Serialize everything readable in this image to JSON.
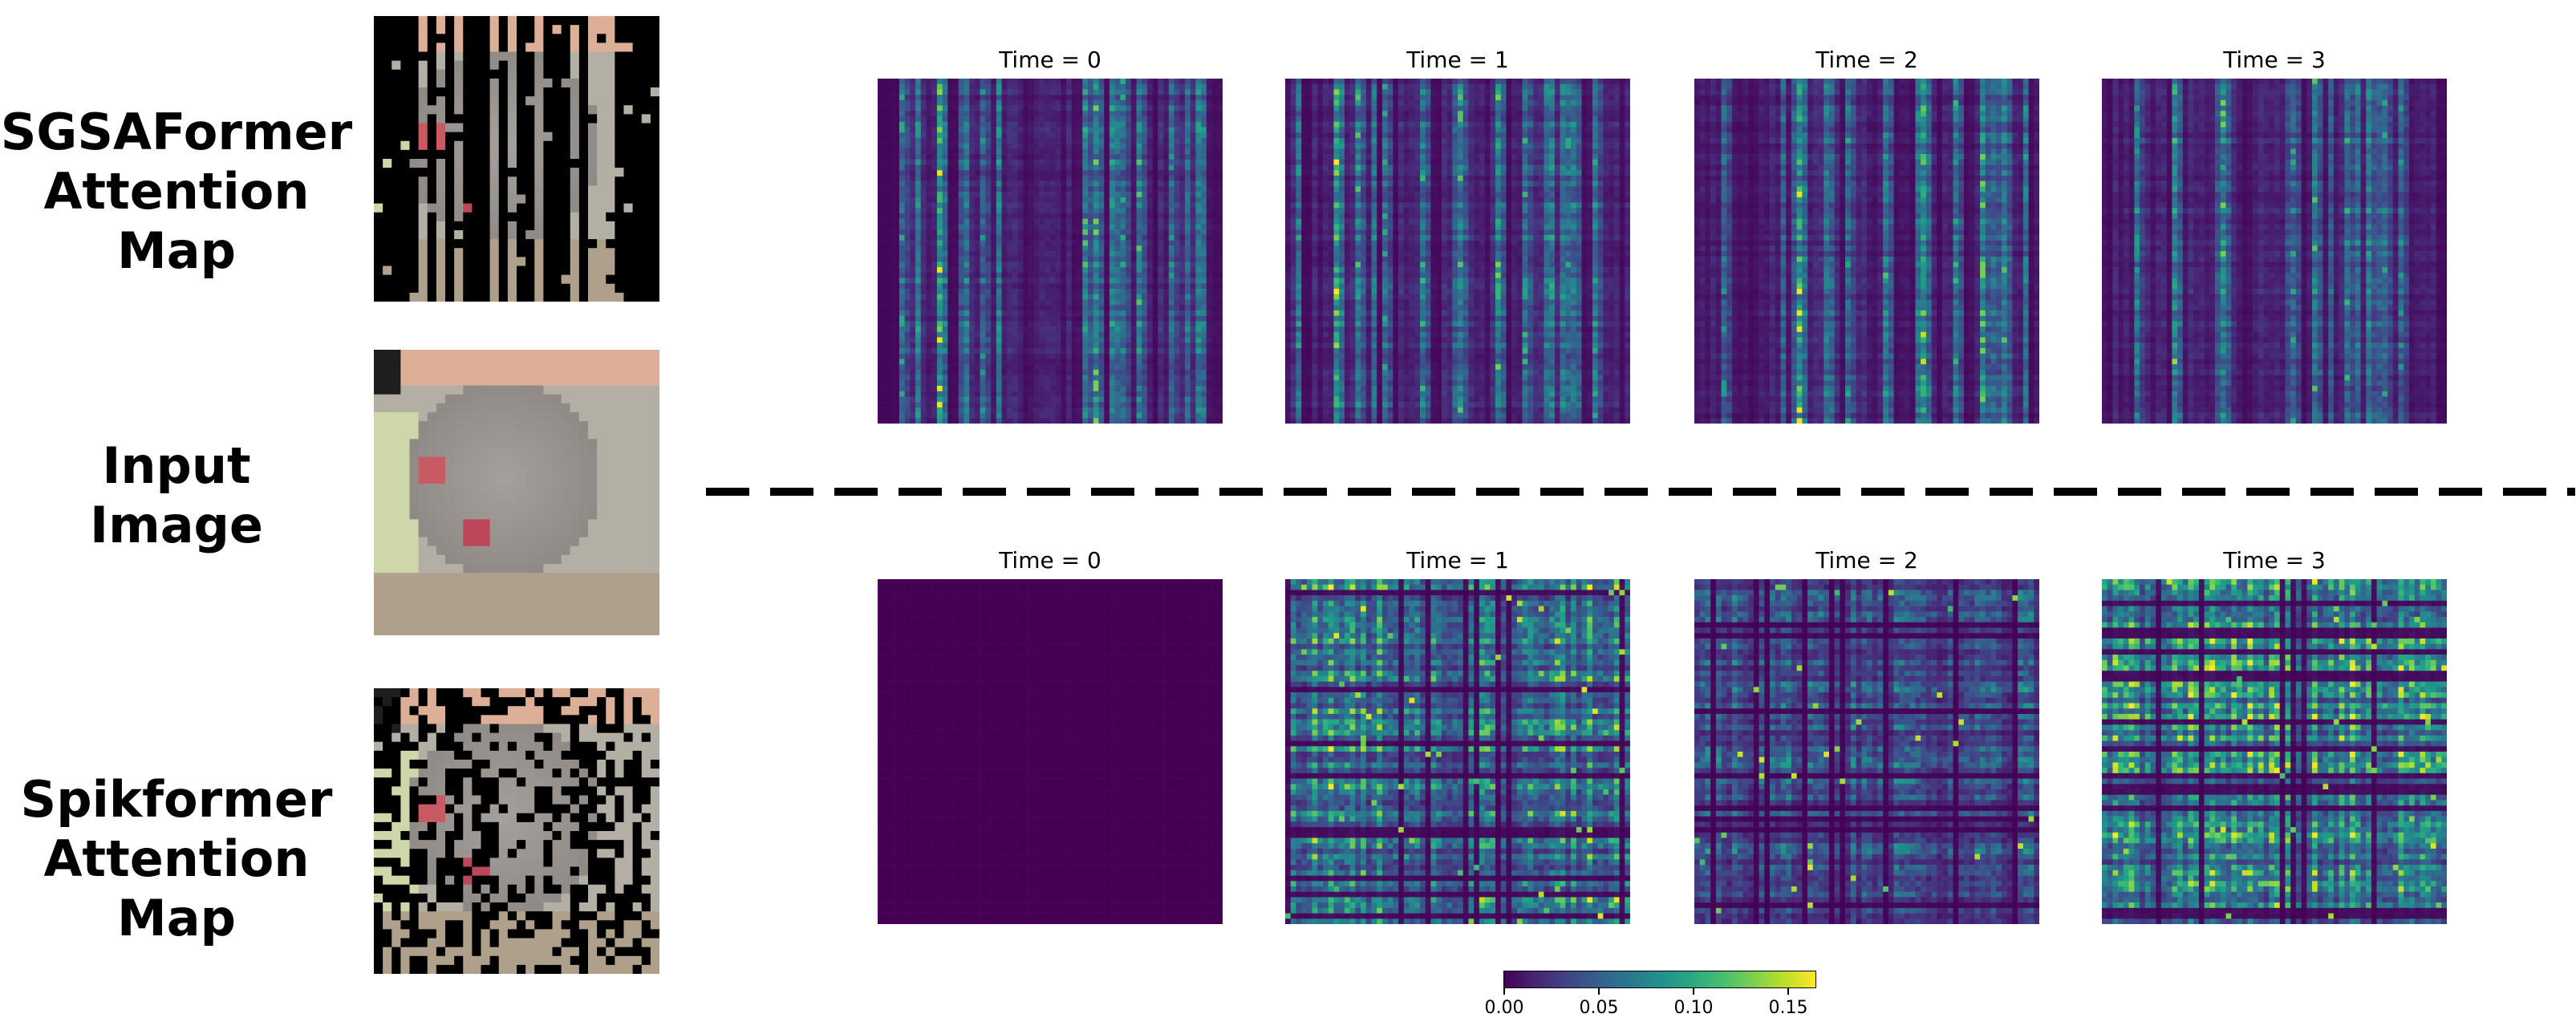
{
  "labels": {
    "sgsa": [
      "SGSAFormer",
      "Attention",
      "Map"
    ],
    "input": [
      "Input",
      "Image"
    ],
    "spik": [
      "Spikformer",
      "Attention",
      "Map"
    ]
  },
  "panel_titles": {
    "top": [
      "Time = 0",
      "Time = 1",
      "Time = 2",
      "Time = 3"
    ],
    "bottom": [
      "Time = 0",
      "Time = 1",
      "Time = 2",
      "Time = 3"
    ]
  },
  "colors": {
    "divider": "#000000",
    "colormap": "viridis",
    "mask": "#000000"
  },
  "chart_data": [
    {
      "type": "heatmap",
      "group": "SGSAFormer Attention Map",
      "titles": [
        "Time = 0",
        "Time = 1",
        "Time = 2",
        "Time = 3"
      ],
      "grid_size": 64,
      "pattern": "vertical column bands (key tokens attended uniformly by all queries)",
      "column_peaks": [
        [
          [
            0.06,
            0.1
          ],
          [
            0.17,
            0.16
          ],
          [
            0.3,
            0.09
          ],
          [
            0.6,
            0.12
          ],
          [
            0.64,
            0.13
          ],
          [
            0.72,
            0.1
          ],
          [
            0.76,
            0.12
          ],
          [
            0.85,
            0.09
          ]
        ],
        [
          [
            0.15,
            0.17
          ],
          [
            0.2,
            0.12
          ],
          [
            0.28,
            0.1
          ],
          [
            0.4,
            0.11
          ],
          [
            0.5,
            0.12
          ],
          [
            0.62,
            0.13
          ],
          [
            0.7,
            0.11
          ],
          [
            0.82,
            0.1
          ],
          [
            0.9,
            0.1
          ]
        ],
        [
          [
            0.08,
            0.09
          ],
          [
            0.3,
            0.16
          ],
          [
            0.45,
            0.1
          ],
          [
            0.55,
            0.12
          ],
          [
            0.66,
            0.15
          ],
          [
            0.76,
            0.11
          ],
          [
            0.84,
            0.13
          ],
          [
            0.9,
            0.12
          ]
        ],
        [
          [
            0.1,
            0.09
          ],
          [
            0.2,
            0.14
          ],
          [
            0.35,
            0.13
          ],
          [
            0.55,
            0.1
          ],
          [
            0.62,
            0.12
          ],
          [
            0.72,
            0.11
          ],
          [
            0.82,
            0.1
          ],
          [
            0.88,
            0.09
          ]
        ]
      ]
    },
    {
      "type": "heatmap",
      "group": "Spikformer Attention Map",
      "titles": [
        "Time = 0",
        "Time = 1",
        "Time = 2",
        "Time = 3"
      ],
      "grid_size": 64,
      "pattern": "grid of horizontal and vertical bands",
      "constant_value_first_panel": 0.0,
      "mean_levels": [
        0.0,
        0.06,
        0.035,
        0.07
      ]
    },
    {
      "type": "colorbar",
      "colormap": "viridis",
      "range": [
        0.0,
        0.165
      ],
      "ticks": [
        0.0,
        0.05,
        0.1,
        0.15
      ],
      "tick_labels": [
        "0.00",
        "0.05",
        "0.10",
        "0.15"
      ]
    }
  ]
}
